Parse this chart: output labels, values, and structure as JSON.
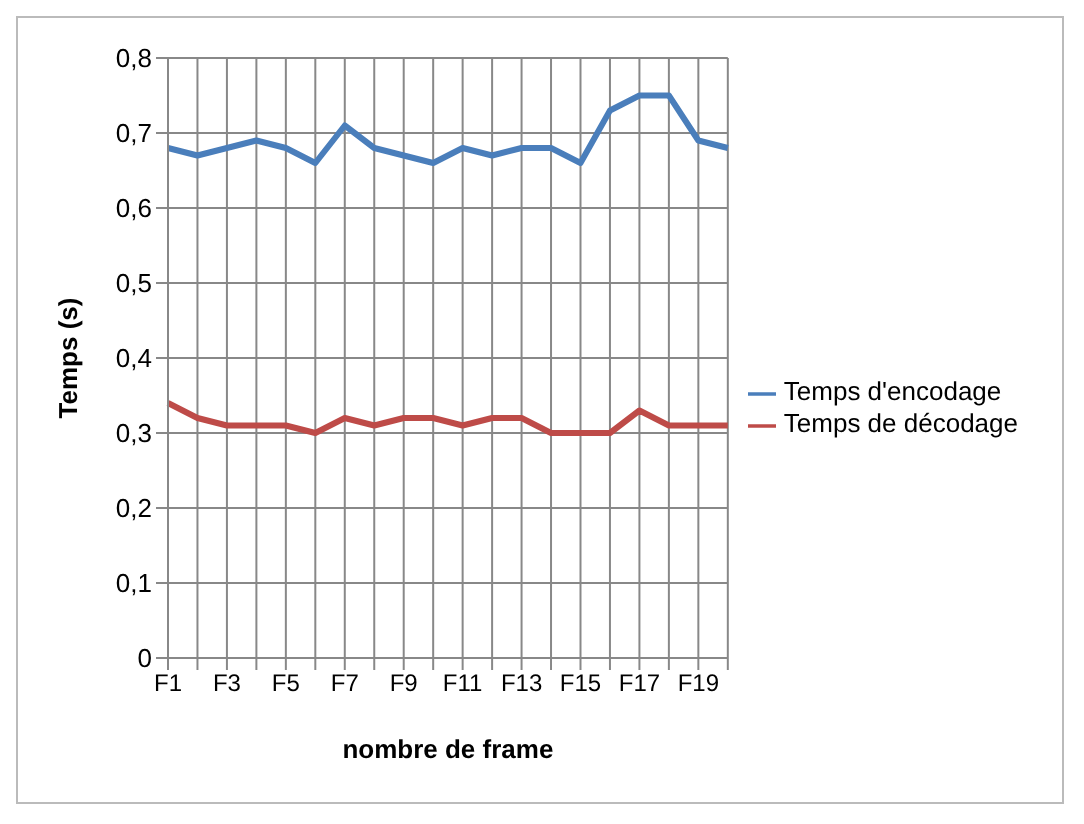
{
  "chart_data": {
    "type": "line",
    "xlabel": "nombre de frame",
    "ylabel": "Temps (s)",
    "categories": [
      "F1",
      null,
      "F3",
      null,
      "F5",
      null,
      "F7",
      null,
      "F9",
      null,
      "F11",
      null,
      "F13",
      null,
      "F15",
      null,
      "F17",
      null,
      "F19",
      null
    ],
    "series": [
      {
        "name": "Temps d'encodage",
        "color": "#4a7ebb",
        "values": [
          0.68,
          0.67,
          0.68,
          0.69,
          0.68,
          0.66,
          0.71,
          0.68,
          0.67,
          0.66,
          0.68,
          0.67,
          0.68,
          0.68,
          0.66,
          0.73,
          0.75,
          0.75,
          0.69,
          0.68
        ]
      },
      {
        "name": "Temps de décodage",
        "color": "#be4b48",
        "values": [
          0.34,
          0.32,
          0.31,
          0.31,
          0.31,
          0.3,
          0.32,
          0.31,
          0.32,
          0.32,
          0.31,
          0.32,
          0.32,
          0.3,
          0.3,
          0.3,
          0.33,
          0.31,
          0.31,
          0.31
        ]
      }
    ],
    "ylim": [
      0,
      0.8
    ],
    "yticks": [
      0,
      {
        "value": 0.1,
        "label": "0,1"
      },
      {
        "value": 0.2,
        "label": "0,2"
      },
      {
        "value": 0.3,
        "label": "0,3"
      },
      {
        "value": 0.4,
        "label": "0,4"
      },
      {
        "value": 0.5,
        "label": "0,5"
      },
      {
        "value": 0.6,
        "label": "0,6"
      },
      {
        "value": 0.7,
        "label": "0,7"
      },
      {
        "value": 0.8,
        "label": "0,8"
      }
    ],
    "grid": true,
    "legend": "right",
    "marker": "none",
    "line_style": "solid"
  }
}
